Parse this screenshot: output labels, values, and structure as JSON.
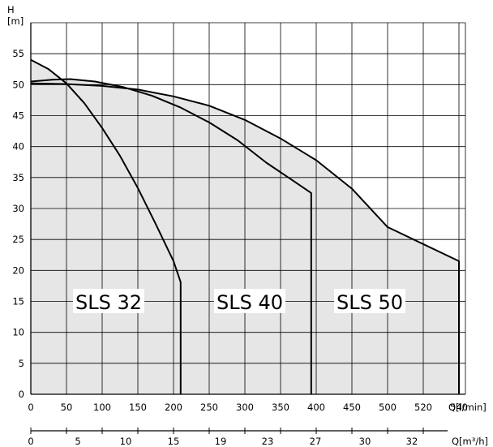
{
  "chart_data": {
    "type": "line",
    "y_axis": {
      "label": "H",
      "unit": "[m]",
      "range": [
        0,
        60
      ],
      "ticks": [
        0,
        5,
        10,
        15,
        20,
        25,
        30,
        35,
        40,
        45,
        50,
        55
      ]
    },
    "x_axis": {
      "unit": "Q[l/min]",
      "range": [
        0,
        550
      ],
      "ticks": [
        0,
        50,
        100,
        150,
        200,
        250,
        300,
        350,
        400,
        450,
        500,
        520,
        540
      ]
    },
    "x_axis_secondary": {
      "unit": "Q[m³/h]",
      "ticks": [
        "0",
        "5",
        "10",
        "15",
        "19",
        "23",
        "27",
        "30",
        "32"
      ]
    },
    "grid": true,
    "fill_color": "#e6e6e6",
    "series": [
      {
        "name": "SLS 32",
        "points": [
          [
            0,
            54
          ],
          [
            25,
            52.5
          ],
          [
            50,
            50.2
          ],
          [
            75,
            47
          ],
          [
            100,
            43
          ],
          [
            125,
            38.5
          ],
          [
            150,
            33.3
          ],
          [
            175,
            27.5
          ],
          [
            200,
            21.5
          ],
          [
            210,
            18.1
          ],
          [
            210,
            0
          ]
        ]
      },
      {
        "name": "SLS 40",
        "points": [
          [
            0,
            50.5
          ],
          [
            30,
            50.8
          ],
          [
            55,
            50.9
          ],
          [
            90,
            50.5
          ],
          [
            130,
            49.6
          ],
          [
            170,
            48.2
          ],
          [
            210,
            46.3
          ],
          [
            250,
            43.9
          ],
          [
            290,
            41
          ],
          [
            330,
            37.4
          ],
          [
            370,
            34.3
          ],
          [
            393,
            32.5
          ],
          [
            393,
            0
          ]
        ]
      },
      {
        "name": "SLS 50",
        "points": [
          [
            0,
            50.2
          ],
          [
            50,
            50.1
          ],
          [
            100,
            49.8
          ],
          [
            150,
            49.2
          ],
          [
            200,
            48.1
          ],
          [
            250,
            46.6
          ],
          [
            300,
            44.3
          ],
          [
            350,
            41.3
          ],
          [
            400,
            37.8
          ],
          [
            450,
            33.2
          ],
          [
            500,
            27
          ],
          [
            540,
            21.5
          ],
          [
            540,
            0
          ]
        ]
      }
    ]
  }
}
